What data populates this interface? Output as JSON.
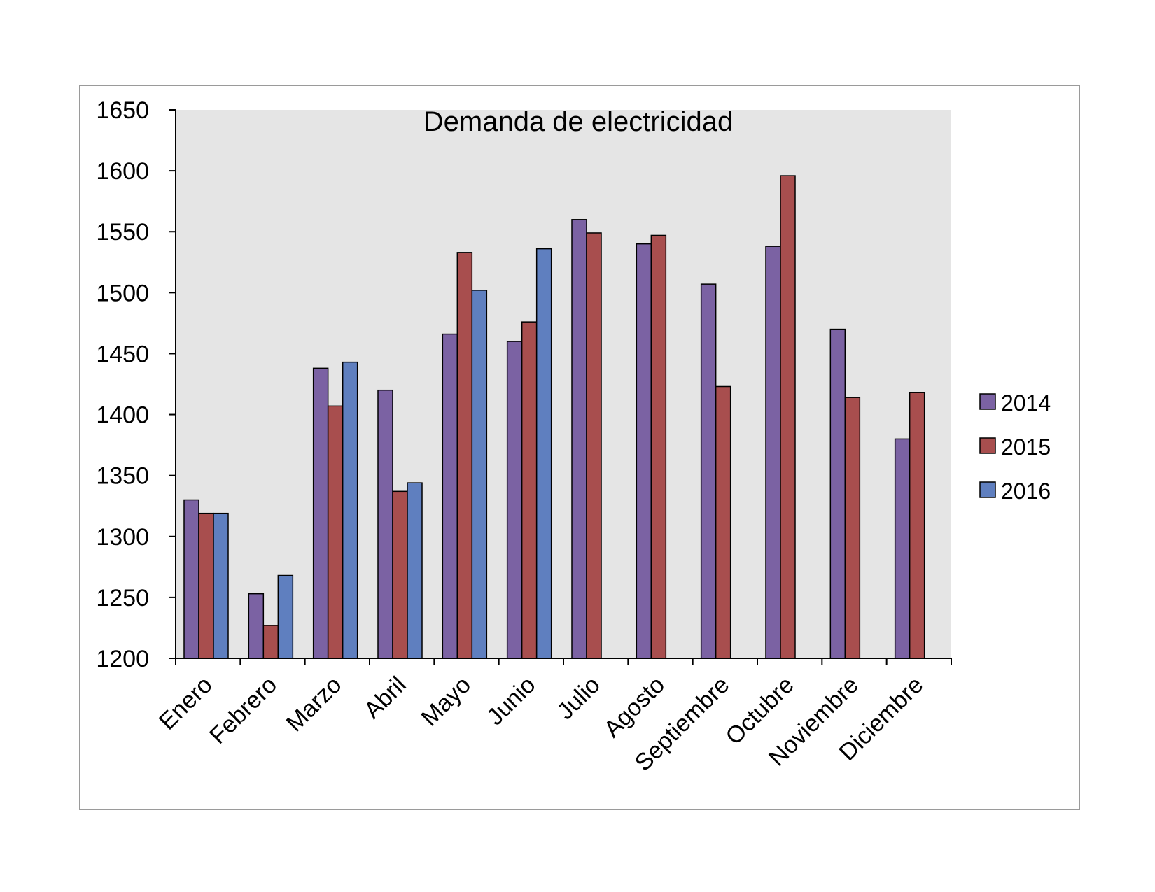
{
  "chart_data": {
    "type": "bar",
    "title": "Demanda de electricidad",
    "xlabel": "",
    "ylabel": "",
    "ylim": [
      1200,
      1650
    ],
    "yticks": [
      1200,
      1250,
      1300,
      1350,
      1400,
      1450,
      1500,
      1550,
      1600,
      1650
    ],
    "grid": false,
    "legend_position": "right",
    "categories": [
      "Enero",
      "Febrero",
      "Marzo",
      "Abril",
      "Mayo",
      "Junio",
      "Julio",
      "Agosto",
      "Septiembre",
      "Octubre",
      "Noviembre",
      "Diciembre"
    ],
    "series": [
      {
        "name": "2014",
        "color": "#7b62a3",
        "values": [
          1330,
          1253,
          1438,
          1420,
          1466,
          1460,
          1560,
          1540,
          1507,
          1538,
          1470,
          1380
        ]
      },
      {
        "name": "2015",
        "color": "#a84e4e",
        "values": [
          1319,
          1227,
          1407,
          1337,
          1533,
          1476,
          1549,
          1547,
          1423,
          1596,
          1414,
          1418
        ]
      },
      {
        "name": "2016",
        "color": "#5f7fbf",
        "values": [
          1319,
          1268,
          1443,
          1344,
          1502,
          1536,
          null,
          null,
          null,
          null,
          null,
          null
        ]
      }
    ]
  }
}
